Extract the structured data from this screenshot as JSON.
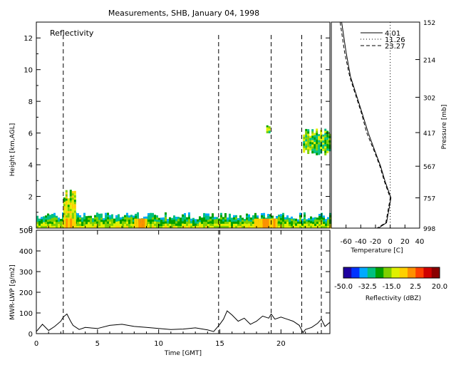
{
  "title": "Measurements, SHB, January 04, 1998",
  "reflectivity_panel": {
    "label": "Reflectivity",
    "ylabel": "Height [km,AGL]"
  },
  "lwp_panel": {
    "ylabel": "MWR-LWP [g/m2]"
  },
  "xlabel": "Time [GMT]",
  "sounding_panel": {
    "xlabel": "Temperature [C]",
    "ylabel": "Pressure [mb]",
    "legend": [
      {
        "label": "4.01",
        "style": "solid"
      },
      {
        "label": "11.26",
        "style": "dotted"
      },
      {
        "label": "23.27",
        "style": "dashed"
      }
    ]
  },
  "colorbar": {
    "label": "Reflectivity (dBZ)",
    "ticks": [
      "-50.0",
      "-32.5",
      "-15.0",
      "2.5",
      "20.0"
    ],
    "colors": [
      "#1e00a0",
      "#0033ff",
      "#00aaff",
      "#00c080",
      "#00a000",
      "#7fd000",
      "#e0f000",
      "#ffd000",
      "#ff9000",
      "#ff4000",
      "#d00000",
      "#8a0000"
    ]
  },
  "chart_data": [
    {
      "type": "heatmap",
      "name": "Reflectivity",
      "x_range": [
        0,
        24
      ],
      "y_range": [
        0,
        13
      ],
      "x_ticks": [
        "0",
        "5",
        "10",
        "15",
        "20"
      ],
      "y_ticks": [
        "0",
        "2",
        "4",
        "6",
        "8",
        "10",
        "12"
      ],
      "value_range_dbz": [
        -50,
        20
      ],
      "vertical_markers_gmt": [
        2.2,
        14.9,
        19.2,
        21.7,
        23.3
      ],
      "features": [
        {
          "desc": "low stratocumulus layer",
          "x": [
            0,
            24
          ],
          "y": [
            0,
            1.0
          ]
        },
        {
          "desc": "enhanced cell",
          "x": [
            2.2,
            3.2
          ],
          "y": [
            0,
            2.5
          ]
        },
        {
          "desc": "isolated echo",
          "x": [
            18.8,
            19.1
          ],
          "y": [
            6.0,
            6.5
          ]
        },
        {
          "desc": "upper cloud layer",
          "x": [
            21.8,
            24
          ],
          "y": [
            4.6,
            6.3
          ]
        }
      ]
    },
    {
      "type": "line",
      "name": "MWR-LWP",
      "x_range": [
        0,
        24
      ],
      "ylim": [
        0,
        500
      ],
      "y_ticks": [
        "0",
        "100",
        "200",
        "300",
        "400",
        "500"
      ],
      "x": [
        0,
        0.5,
        1.0,
        1.5,
        2.0,
        2.2,
        2.5,
        2.8,
        3.0,
        3.5,
        4.0,
        5.0,
        6.0,
        7.0,
        8.0,
        9.0,
        10.0,
        11.0,
        12.0,
        13.0,
        14.0,
        14.5,
        15.0,
        15.3,
        15.6,
        16.0,
        16.5,
        17.0,
        17.5,
        18.0,
        18.5,
        19.0,
        19.2,
        19.5,
        20.0,
        20.5,
        21.0,
        21.5,
        21.8,
        22.0,
        22.5,
        23.0,
        23.3,
        23.6,
        24.0
      ],
      "values": [
        10,
        45,
        15,
        35,
        60,
        80,
        95,
        60,
        40,
        20,
        30,
        25,
        40,
        45,
        35,
        30,
        25,
        20,
        22,
        28,
        18,
        10,
        45,
        70,
        110,
        90,
        60,
        75,
        45,
        60,
        85,
        75,
        95,
        70,
        80,
        70,
        60,
        40,
        5,
        20,
        30,
        50,
        70,
        35,
        55
      ]
    },
    {
      "type": "line",
      "name": "Temperature sounding",
      "x_range": [
        -80,
        40
      ],
      "x_ticks": [
        "-60",
        "-40",
        "-20",
        "0",
        "20",
        "40"
      ],
      "y_pressure_ticks": [
        "152",
        "214",
        "302",
        "417",
        "567",
        "757",
        "998"
      ],
      "series": [
        {
          "name": "4.01",
          "style": "solid",
          "pressure": [
            152,
            200,
            250,
            302,
            350,
            417,
            500,
            567,
            650,
            757,
            850,
            950,
            998
          ],
          "temperature": [
            -66,
            -60,
            -54,
            -45,
            -38,
            -30,
            -20,
            -13,
            -7,
            1,
            -2,
            -5,
            -16
          ]
        },
        {
          "name": "11.26",
          "style": "dotted",
          "pressure": [
            152,
            998
          ],
          "temperature": [
            0,
            0
          ]
        },
        {
          "name": "23.27",
          "style": "dashed",
          "pressure": [
            152,
            200,
            250,
            302,
            350,
            417,
            500,
            567,
            650,
            757,
            850,
            950,
            998
          ],
          "temperature": [
            -68,
            -62,
            -55,
            -46,
            -39,
            -32,
            -21,
            -14,
            -8,
            0,
            -3,
            -6,
            -18
          ]
        }
      ]
    }
  ]
}
